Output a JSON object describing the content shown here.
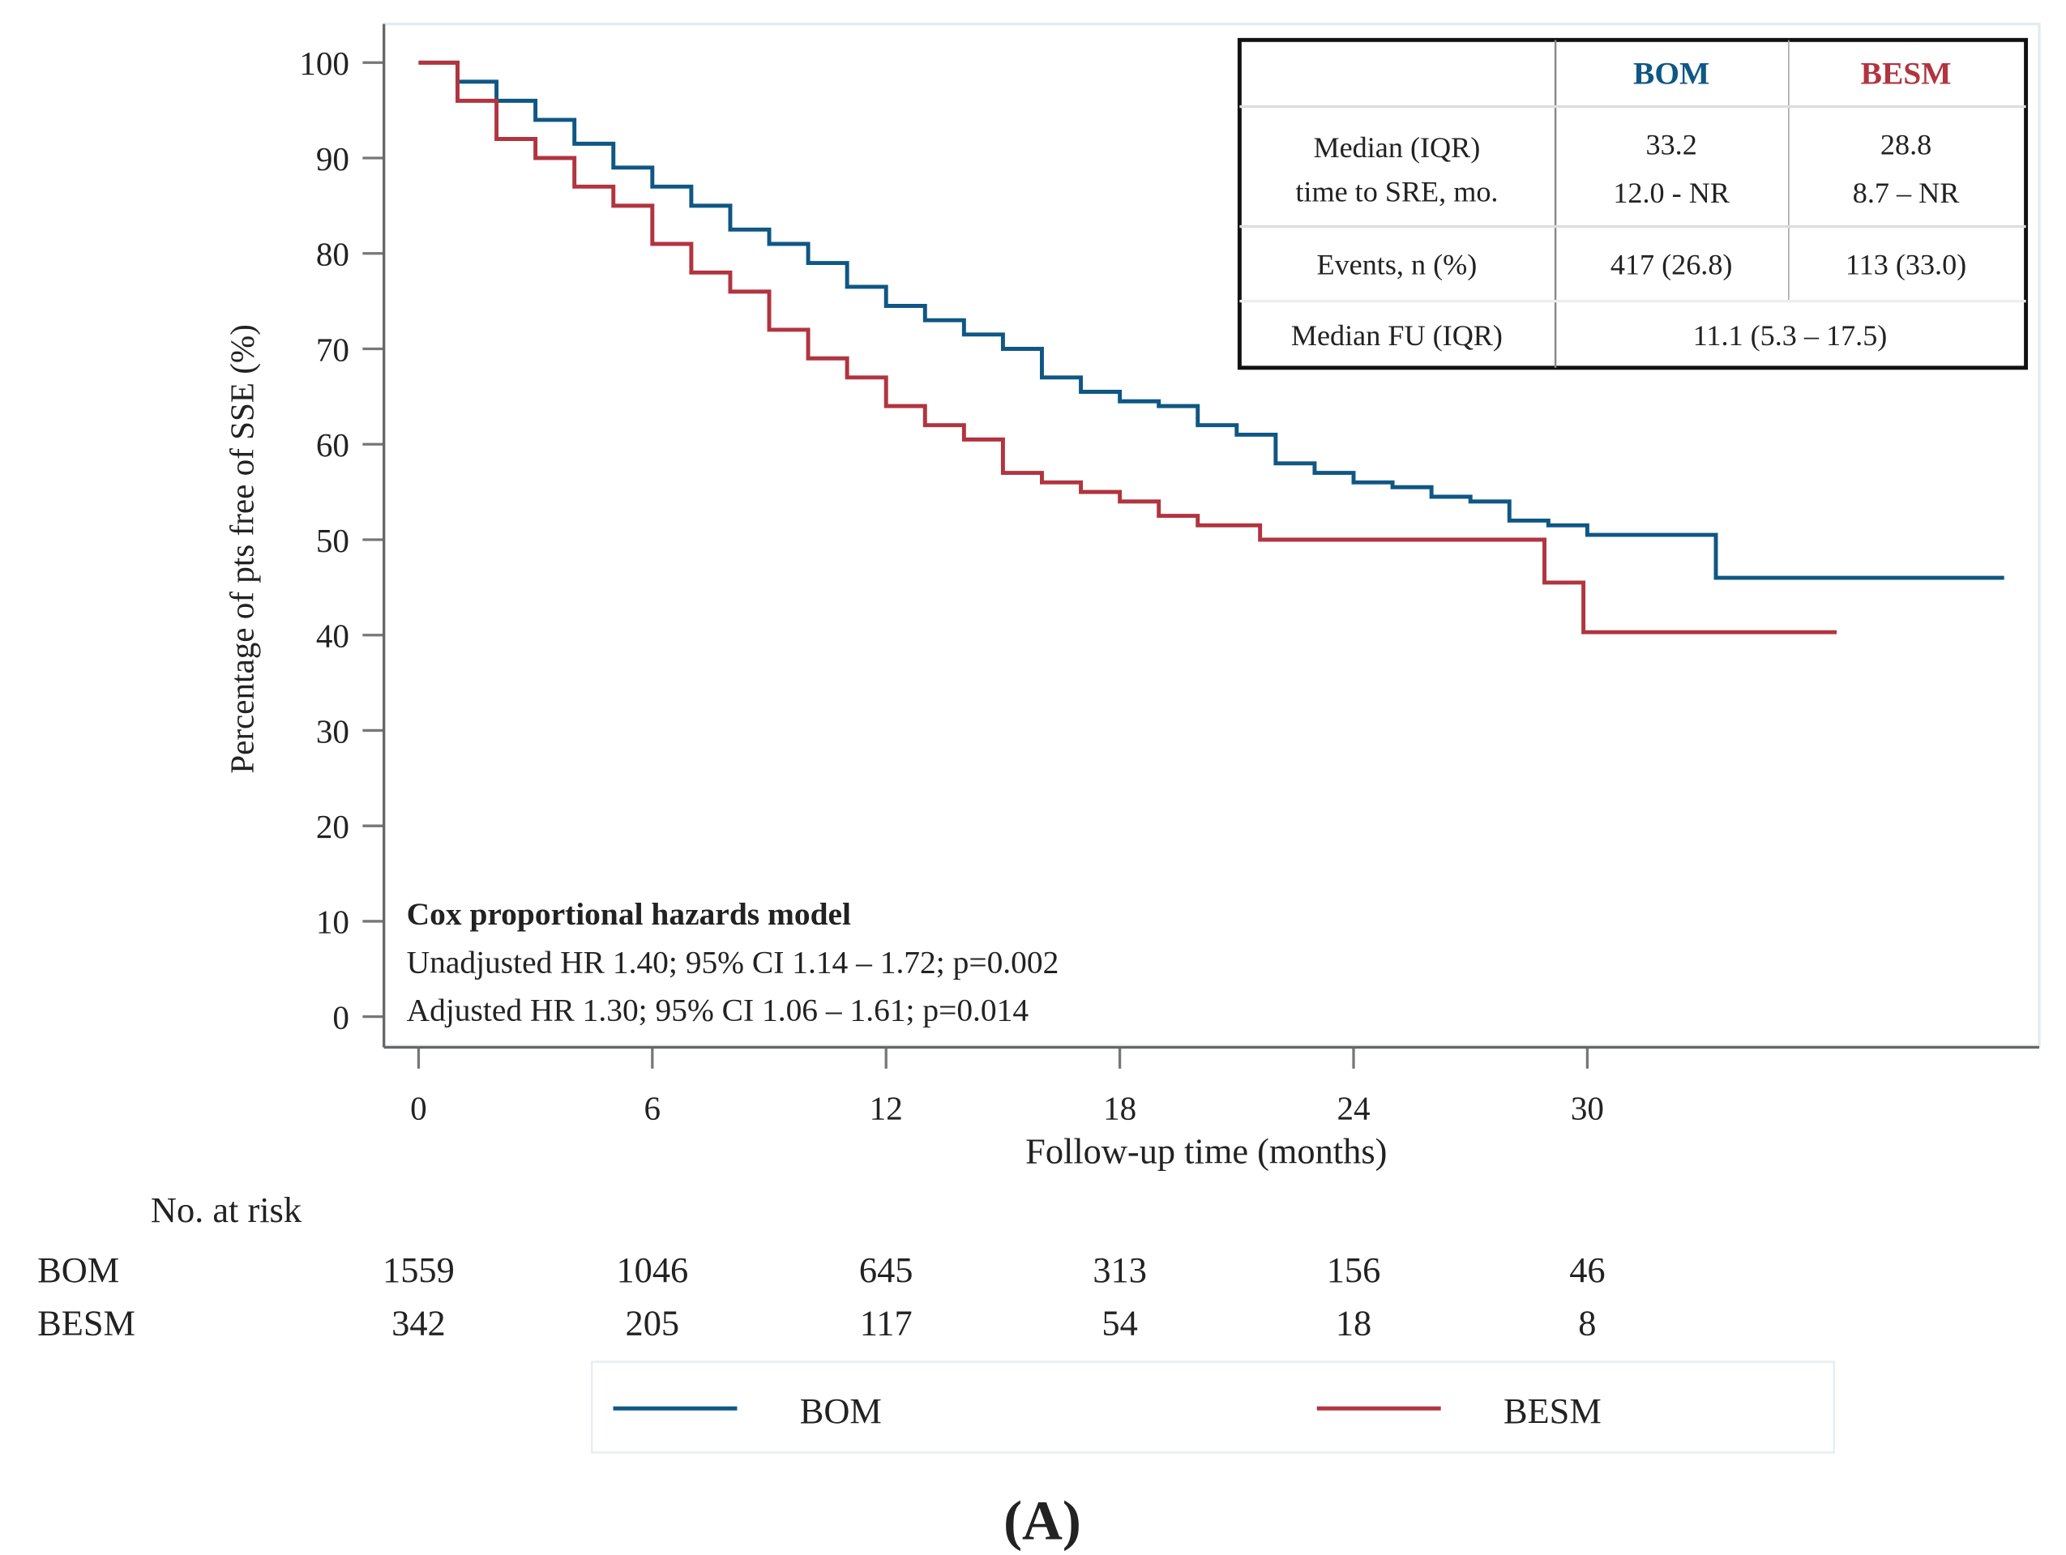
{
  "chart_data": {
    "type": "line",
    "subtype": "kaplan-meier step",
    "xlabel": "Follow-up time (months)",
    "ylabel": "Percentage of pts free of SSE (%)",
    "xlim": [
      0,
      41
    ],
    "ylim": [
      0,
      100
    ],
    "xticks": [
      0,
      6,
      12,
      18,
      24,
      30
    ],
    "yticks": [
      0,
      10,
      20,
      30,
      40,
      50,
      60,
      70,
      80,
      90,
      100
    ],
    "legend_position": "bottom",
    "series": [
      {
        "name": "BOM",
        "color": "#0f5784",
        "x": [
          0,
          1,
          2,
          3,
          4,
          5,
          6,
          7,
          8,
          9,
          10,
          11,
          12,
          13,
          14,
          15,
          16,
          17,
          18,
          19,
          20,
          21,
          22,
          23,
          24,
          25,
          26,
          27,
          28,
          29,
          30,
          33.3,
          40.7
        ],
        "y": [
          100,
          98,
          96,
          94,
          91.5,
          89,
          87,
          85,
          82.5,
          81,
          79,
          76.5,
          74.5,
          73,
          71.5,
          70,
          67,
          65.5,
          64.5,
          64,
          62,
          61,
          58,
          57,
          56,
          55.5,
          54.5,
          54,
          52,
          51.5,
          50.5,
          46,
          46
        ]
      },
      {
        "name": "BESM",
        "color": "#b1343f",
        "x": [
          0,
          1,
          2,
          3,
          4,
          5,
          6,
          7,
          8,
          9,
          10,
          11,
          12,
          13,
          14,
          15,
          16,
          17,
          18,
          19,
          20,
          21.6,
          28.9,
          29.9,
          36.4
        ],
        "y": [
          100,
          96,
          92,
          90,
          87,
          85,
          81,
          78,
          76,
          72,
          69,
          67,
          64,
          62,
          60.5,
          57,
          56,
          55,
          54,
          52.5,
          51.5,
          50,
          45.5,
          40.3,
          40.3
        ]
      }
    ],
    "table": {
      "headers": [
        "",
        "BOM",
        "BESM"
      ],
      "rows": [
        {
          "label": [
            "Median (IQR)",
            "time to SRE, mo."
          ],
          "bom": [
            "33.2",
            "12.0 - NR"
          ],
          "besm": [
            "28.8",
            "8.7 – NR"
          ]
        },
        {
          "label": [
            "Events, n (%)"
          ],
          "bom": [
            "417 (26.8)"
          ],
          "besm": [
            "113 (33.0)"
          ]
        },
        {
          "label": [
            "Median FU (IQR)"
          ],
          "merged": "11.1 (5.3 – 17.5)"
        }
      ]
    },
    "annotation": {
      "title": "Cox proportional hazards model",
      "lines": [
        "Unadjusted HR 1.40; 95% CI 1.14 – 1.72; p=0.002",
        "Adjusted HR 1.30; 95% CI 1.06 – 1.61; p=0.014"
      ]
    },
    "at_risk": {
      "title": "No. at risk",
      "rows": [
        {
          "name": "BOM",
          "values": [
            "1559",
            "1046",
            "645",
            "313",
            "156",
            "46"
          ]
        },
        {
          "name": "BESM",
          "values": [
            "342",
            "205",
            "117",
            "54",
            "18",
            "8"
          ]
        }
      ]
    },
    "panel_label": "(A)"
  }
}
